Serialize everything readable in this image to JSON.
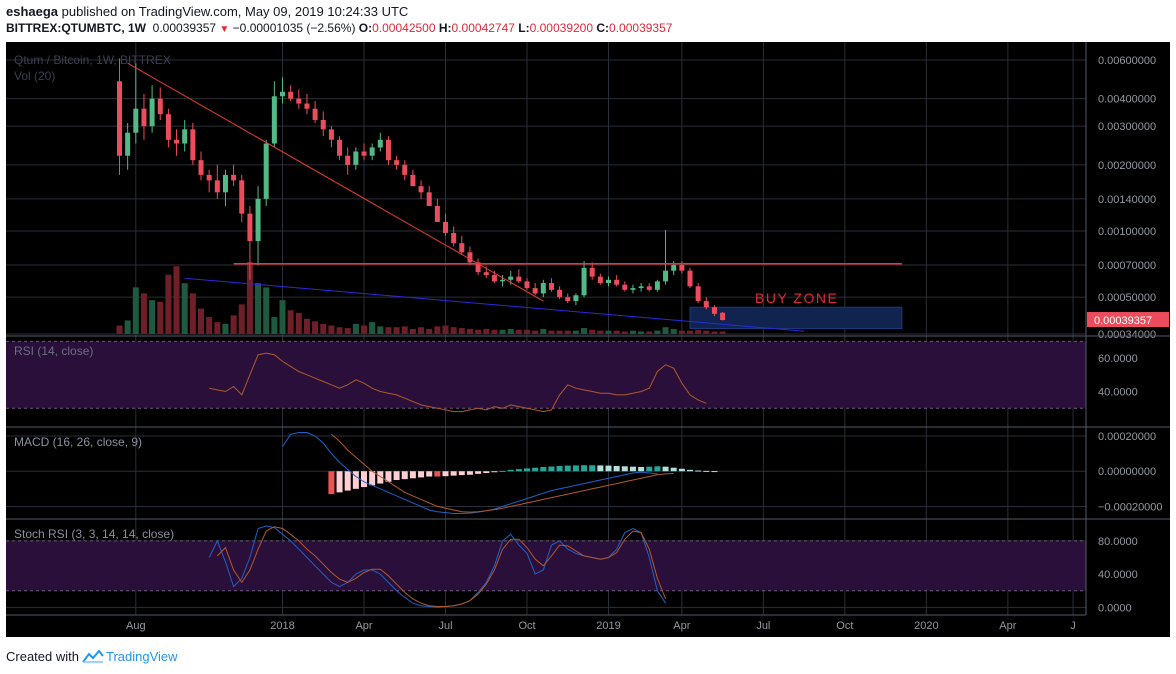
{
  "header": {
    "author": "eshaega",
    "published_text": "published on TradingView.com, May 09, 2019 10:24:33 UTC",
    "symbol": "BITTREX:QTUMBTC, 1W",
    "last": "0.00039357",
    "change": "−0.00001035 (−2.56%)",
    "o_label": "O:",
    "o_value": "0.00042500",
    "h_label": "H:",
    "h_value": "0.00042747",
    "l_label": "L:",
    "l_value": "0.00039200",
    "c_label": "C:",
    "c_value": "0.00039357"
  },
  "footer": {
    "created_with": "Created with",
    "brand": "TradingView"
  },
  "colors": {
    "up": "#53b987",
    "down": "#eb4d5c",
    "trend": "#e53935",
    "support": "#2a2adb",
    "rsi": "#b05a2c",
    "macd": "#1e63c9",
    "signal": "#b05a2c",
    "zone": "#10244f",
    "buy_zone_text": "#e0293a",
    "band": "#2a0f3a"
  },
  "chart_data": [
    {
      "type": "candlestick",
      "title": "Qtum / Bitcoin, 1W, BITTREX",
      "volume_label": "Vol (20)",
      "y_scale": "log",
      "ylim": [
        0.00034,
        0.0068
      ],
      "y_ticks": [
        "0.00600000",
        "0.00400000",
        "0.00300000",
        "0.00200000",
        "0.00140000",
        "0.00100000",
        "0.00070000",
        "0.00050000",
        "0.00034000"
      ],
      "y_tick_values": [
        0.006,
        0.004,
        0.003,
        0.002,
        0.0014,
        0.001,
        0.0007,
        0.0005,
        0.00034
      ],
      "last_price_label": "0.00039357",
      "x_ticks": [
        "Aug",
        "2018",
        "Apr",
        "Jul",
        "Oct",
        "2019",
        "Apr",
        "Jul",
        "Oct",
        "2020",
        "Apr",
        "J"
      ],
      "x_tick_weeks": [
        2,
        20,
        30,
        40,
        50,
        60,
        69,
        79,
        89,
        99,
        109,
        117
      ],
      "annotation": "BUY ZONE",
      "buy_zone": {
        "week_from": 70,
        "week_to": 96,
        "price_low": 0.00036,
        "price_high": 0.00045
      },
      "resistance_line": {
        "week_from": 14,
        "week_to": 96,
        "price": 0.00071
      },
      "trend_line": {
        "points": [
          [
            1,
            0.0058
          ],
          [
            52,
            0.00048
          ]
        ]
      },
      "support_line": {
        "points": [
          [
            8,
            0.00061
          ],
          [
            84,
            0.00035
          ]
        ]
      },
      "candles": [
        [
          0.0048,
          0.0061,
          0.0018,
          0.0022
        ],
        [
          0.0022,
          0.0031,
          0.0019,
          0.0028
        ],
        [
          0.0028,
          0.0058,
          0.0025,
          0.0036
        ],
        [
          0.0036,
          0.0042,
          0.0026,
          0.003
        ],
        [
          0.003,
          0.0046,
          0.0028,
          0.004
        ],
        [
          0.004,
          0.0045,
          0.0032,
          0.0034
        ],
        [
          0.0034,
          0.0036,
          0.0024,
          0.0026
        ],
        [
          0.0026,
          0.0029,
          0.0022,
          0.0025
        ],
        [
          0.0025,
          0.0032,
          0.0023,
          0.0029
        ],
        [
          0.0029,
          0.0031,
          0.002,
          0.0021
        ],
        [
          0.0021,
          0.0023,
          0.0017,
          0.0018
        ],
        [
          0.0018,
          0.0019,
          0.0015,
          0.0017
        ],
        [
          0.0017,
          0.002,
          0.0014,
          0.0015
        ],
        [
          0.0015,
          0.0019,
          0.0013,
          0.0018
        ],
        [
          0.0018,
          0.002,
          0.0016,
          0.0017
        ],
        [
          0.0017,
          0.0018,
          0.0011,
          0.0012
        ],
        [
          0.0012,
          0.0013,
          0.0006,
          0.0009
        ],
        [
          0.0009,
          0.0016,
          0.0007,
          0.0014
        ],
        [
          0.0014,
          0.0026,
          0.0013,
          0.0025
        ],
        [
          0.0025,
          0.0048,
          0.0024,
          0.0041
        ],
        [
          0.0041,
          0.005,
          0.0038,
          0.0043
        ],
        [
          0.0043,
          0.0046,
          0.0039,
          0.004
        ],
        [
          0.004,
          0.0044,
          0.0036,
          0.0038
        ],
        [
          0.0038,
          0.0042,
          0.0034,
          0.0036
        ],
        [
          0.0036,
          0.0039,
          0.0031,
          0.0032
        ],
        [
          0.0032,
          0.0035,
          0.0027,
          0.0029
        ],
        [
          0.0029,
          0.003,
          0.0024,
          0.0026
        ],
        [
          0.0026,
          0.0027,
          0.0021,
          0.0022
        ],
        [
          0.0022,
          0.0024,
          0.0018,
          0.002
        ],
        [
          0.002,
          0.0024,
          0.0019,
          0.0023
        ],
        [
          0.0023,
          0.0025,
          0.0021,
          0.0022
        ],
        [
          0.0022,
          0.0025,
          0.0021,
          0.0024
        ],
        [
          0.0024,
          0.0028,
          0.0023,
          0.0026
        ],
        [
          0.0026,
          0.0027,
          0.002,
          0.0021
        ],
        [
          0.0021,
          0.0022,
          0.0019,
          0.002
        ],
        [
          0.002,
          0.0021,
          0.0017,
          0.0018
        ],
        [
          0.0018,
          0.0019,
          0.0016,
          0.0016
        ],
        [
          0.0016,
          0.0017,
          0.0014,
          0.0015
        ],
        [
          0.0015,
          0.0016,
          0.0013,
          0.0013
        ],
        [
          0.0013,
          0.0014,
          0.0011,
          0.0011
        ],
        [
          0.0011,
          0.0012,
          0.00095,
          0.00098
        ],
        [
          0.00098,
          0.00105,
          0.00085,
          0.00088
        ],
        [
          0.00088,
          0.00095,
          0.00078,
          0.0008
        ],
        [
          0.0008,
          0.00085,
          0.0007,
          0.00072
        ],
        [
          0.00072,
          0.00075,
          0.00063,
          0.00065
        ],
        [
          0.00065,
          0.00069,
          0.00061,
          0.00063
        ],
        [
          0.00063,
          0.00066,
          0.00058,
          0.00059
        ],
        [
          0.00059,
          0.00063,
          0.00056,
          0.0006
        ],
        [
          0.0006,
          0.00066,
          0.00057,
          0.00062
        ],
        [
          0.00062,
          0.00067,
          0.00058,
          0.00059
        ],
        [
          0.00059,
          0.00061,
          0.00054,
          0.00055
        ],
        [
          0.00055,
          0.00058,
          0.00051,
          0.00052
        ],
        [
          0.00052,
          0.0006,
          0.0005,
          0.00058
        ],
        [
          0.00058,
          0.00061,
          0.00053,
          0.00054
        ],
        [
          0.00054,
          0.00056,
          0.00049,
          0.0005
        ],
        [
          0.0005,
          0.00052,
          0.00047,
          0.00048
        ],
        [
          0.00048,
          0.00052,
          0.00046,
          0.00051
        ],
        [
          0.00051,
          0.00073,
          0.0005,
          0.00068
        ],
        [
          0.00068,
          0.00072,
          0.0006,
          0.00062
        ],
        [
          0.00062,
          0.00064,
          0.00057,
          0.00058
        ],
        [
          0.00058,
          0.00062,
          0.00056,
          0.0006
        ],
        [
          0.0006,
          0.00063,
          0.00056,
          0.00057
        ],
        [
          0.00057,
          0.00059,
          0.00053,
          0.00054
        ],
        [
          0.00054,
          0.00057,
          0.00052,
          0.00055
        ],
        [
          0.00055,
          0.00058,
          0.00053,
          0.00056
        ],
        [
          0.00056,
          0.00058,
          0.00053,
          0.00054
        ],
        [
          0.00054,
          0.0006,
          0.00053,
          0.00059
        ],
        [
          0.00059,
          0.00101,
          0.00057,
          0.00066
        ],
        [
          0.00066,
          0.00073,
          0.00063,
          0.0007
        ],
        [
          0.0007,
          0.00073,
          0.00064,
          0.00066
        ],
        [
          0.00066,
          0.00068,
          0.00055,
          0.00056
        ],
        [
          0.00056,
          0.00058,
          0.00047,
          0.00048
        ],
        [
          0.00048,
          0.0005,
          0.00044,
          0.00045
        ],
        [
          0.00045,
          0.00046,
          0.00041,
          0.00042
        ],
        [
          0.000425,
          0.00042747,
          0.000392,
          0.00039357
        ]
      ],
      "volume": [
        10,
        16,
        55,
        48,
        40,
        38,
        70,
        80,
        60,
        48,
        30,
        20,
        14,
        12,
        22,
        35,
        85,
        60,
        55,
        20,
        40,
        28,
        25,
        18,
        15,
        12,
        10,
        8,
        7,
        12,
        10,
        14,
        9,
        8,
        8,
        9,
        6,
        8,
        6,
        9,
        10,
        8,
        7,
        6,
        5,
        6,
        5,
        5,
        6,
        5,
        5,
        4,
        6,
        4,
        4,
        4,
        4,
        7,
        5,
        4,
        4,
        4,
        3,
        4,
        3,
        3,
        4,
        8,
        6,
        4,
        4,
        5,
        4,
        3,
        3
      ]
    },
    {
      "type": "line",
      "title": "RSI (14, close)",
      "ylim": [
        20,
        72
      ],
      "y_ticks": [
        "60.0000",
        "40.0000"
      ],
      "y_tick_values": [
        60,
        40
      ],
      "band": [
        30,
        70
      ],
      "series": [
        {
          "start_week": 11,
          "values": [
            42,
            41,
            40,
            43,
            38,
            50,
            62,
            63,
            62,
            58,
            55,
            52,
            50,
            48,
            46,
            44,
            42,
            44,
            47,
            45,
            42,
            40,
            39,
            38,
            36,
            34,
            32,
            31,
            30,
            29,
            28,
            28,
            29,
            30,
            29,
            31,
            30,
            32,
            31,
            30,
            29,
            28,
            29,
            38,
            44,
            42,
            41,
            40,
            39,
            39,
            38,
            38,
            39,
            40,
            42,
            52,
            56,
            54,
            45,
            38,
            35,
            33
          ]
        }
      ]
    },
    {
      "type": "line_and_histogram",
      "title": "MACD (16, 26, close, 9)",
      "ylim": [
        -0.00026,
        0.00024
      ],
      "y_ticks": [
        "0.00020000",
        "0.00000000",
        "−0.00020000"
      ],
      "y_tick_values": [
        0.0002,
        0,
        -0.0002
      ],
      "series": [
        {
          "start_week": 20,
          "values": [
            0.00014,
            0.00021,
            0.00022,
            0.00022,
            0.0002,
            0.00016,
            0.0001,
            5e-05,
            1e-05,
            -3e-05,
            -6e-05,
            -8e-05,
            -0.0001,
            -0.00012,
            -0.00014,
            -0.00016,
            -0.00018,
            -0.0002,
            -0.00022,
            -0.00023,
            -0.000235,
            -0.00024,
            -0.00024,
            -0.000238,
            -0.000232,
            -0.000225,
            -0.000215,
            -0.0002,
            -0.000185,
            -0.00017,
            -0.000155,
            -0.00014,
            -0.000125,
            -0.00011,
            -0.0001,
            -9e-05,
            -8e-05,
            -7e-05,
            -6e-05,
            -5e-05,
            -4e-05,
            -3e-05,
            -2e-05,
            -1e-05,
            -5e-06,
            -1e-05,
            -1.5e-05
          ]
        },
        {
          "start_week": 26,
          "values": [
            0.00021,
            0.00017,
            0.00012,
            8e-05,
            4e-05,
            0.0,
            -3e-05,
            -6e-05,
            -9e-05,
            -0.00012,
            -0.00014,
            -0.00016,
            -0.00018,
            -0.0002,
            -0.00021,
            -0.00022,
            -0.00023,
            -0.000232,
            -0.00023,
            -0.000225,
            -0.000218,
            -0.00021,
            -0.0002,
            -0.00019,
            -0.00018,
            -0.00017,
            -0.00016,
            -0.00015,
            -0.00014,
            -0.00013,
            -0.00012,
            -0.00011,
            -0.0001,
            -9e-05,
            -8e-05,
            -7e-05,
            -6e-05,
            -5e-05,
            -4e-05,
            -3e-05,
            -2e-05,
            -1.5e-05,
            -1.3e-05
          ]
        }
      ],
      "histogram": {
        "start_week": 26,
        "values": [
          -0.00013,
          -0.00012,
          -0.00011,
          -0.0001,
          -9e-05,
          -8e-05,
          -7e-05,
          -6e-05,
          -5e-05,
          -4.5e-05,
          -4e-05,
          -3.5e-05,
          -3e-05,
          -3e-05,
          -2.8e-05,
          -2.5e-05,
          -2.2e-05,
          -2e-05,
          -1.5e-05,
          -1e-05,
          -5e-06,
          2e-06,
          8e-06,
          1.2e-05,
          1.6e-05,
          2e-05,
          2.4e-05,
          2.7e-05,
          3e-05,
          3.2e-05,
          3.3e-05,
          3.4e-05,
          3.4e-05,
          3.3e-05,
          3.2e-05,
          3e-05,
          2.8e-05,
          2.6e-05,
          2.4e-05,
          2.6e-05,
          2.8e-05,
          2.6e-05,
          2e-05,
          1.4e-05,
          8e-06,
          4e-06,
          2e-06,
          1e-06
        ]
      }
    },
    {
      "type": "line",
      "title": "Stoch RSI (3, 3, 14, 14, close)",
      "ylim": [
        -2,
        104
      ],
      "y_ticks": [
        "80.0000",
        "40.0000",
        "0.0000"
      ],
      "y_tick_values": [
        80,
        40,
        0
      ],
      "band": [
        20,
        80
      ],
      "series": [
        {
          "start_week": 11,
          "values": [
            60,
            80,
            55,
            25,
            35,
            60,
            95,
            98,
            96,
            88,
            80,
            70,
            60,
            50,
            40,
            30,
            25,
            30,
            40,
            45,
            45,
            40,
            30,
            20,
            12,
            5,
            2,
            1,
            0,
            1,
            2,
            4,
            8,
            18,
            30,
            50,
            80,
            88,
            75,
            65,
            40,
            45,
            75,
            80,
            70,
            65,
            62,
            60,
            58,
            60,
            70,
            90,
            95,
            90,
            60,
            20,
            5
          ]
        },
        {
          "start_week": 12,
          "values": [
            62,
            72,
            45,
            30,
            45,
            70,
            92,
            97,
            95,
            88,
            80,
            70,
            62,
            52,
            42,
            34,
            30,
            35,
            42,
            46,
            46,
            38,
            28,
            18,
            10,
            5,
            2,
            1,
            1,
            2,
            4,
            8,
            16,
            28,
            45,
            70,
            82,
            82,
            72,
            58,
            50,
            62,
            75,
            74,
            68,
            62,
            60,
            58,
            60,
            66,
            82,
            92,
            90,
            70,
            35,
            10
          ]
        }
      ]
    }
  ]
}
